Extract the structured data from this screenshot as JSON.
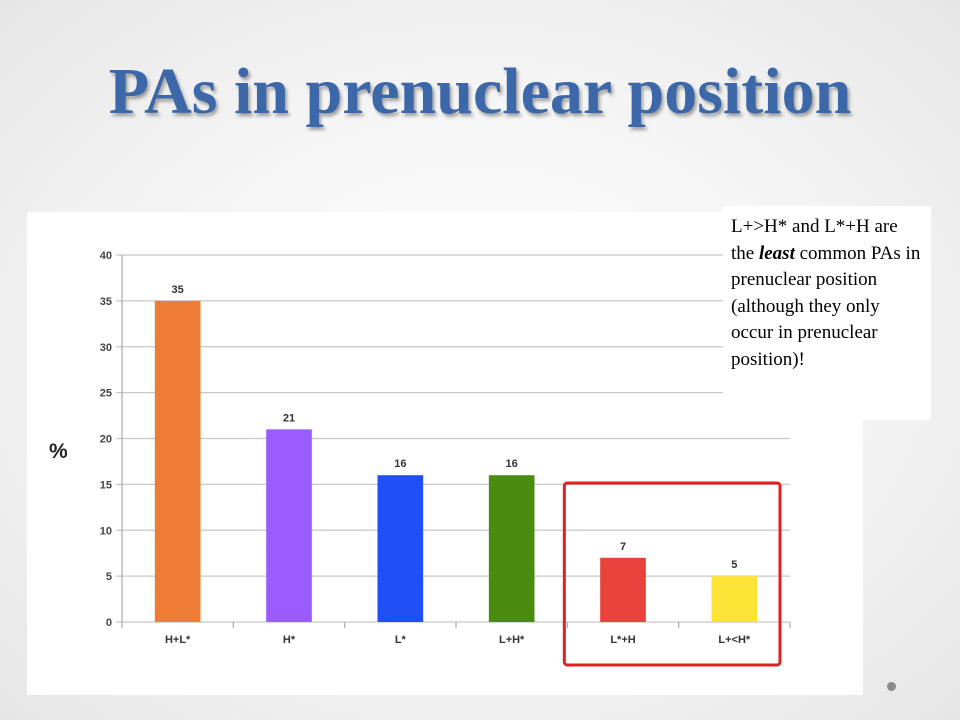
{
  "slide": {
    "title": "PAs in prenuclear position"
  },
  "callout": {
    "text_before": "L+>H* and L*+H are the ",
    "emphasis": "least",
    "text_after": " common PAs in prenuclear position (although they only occur in prenuclear position)!"
  },
  "chart_data": {
    "type": "bar",
    "title": "",
    "xlabel": "",
    "ylabel": "%",
    "ylim": [
      0,
      40
    ],
    "yticks": [
      0,
      5,
      10,
      15,
      20,
      25,
      30,
      35,
      40
    ],
    "grid": true,
    "categories": [
      "H+L*",
      "H*",
      "L*",
      "L+H*",
      "L*+H",
      "L+<H*"
    ],
    "values": [
      35,
      21,
      16,
      16,
      7,
      5
    ],
    "data_labels": [
      "35",
      "21",
      "16",
      "16",
      "7",
      "5"
    ],
    "colors": [
      "#ef7c35",
      "#9b5cff",
      "#1f4ff5",
      "#4a8c10",
      "#e8423a",
      "#fde335"
    ],
    "highlight": {
      "categories": [
        "L*+H",
        "L+<H*"
      ],
      "color": "#e02020"
    }
  }
}
